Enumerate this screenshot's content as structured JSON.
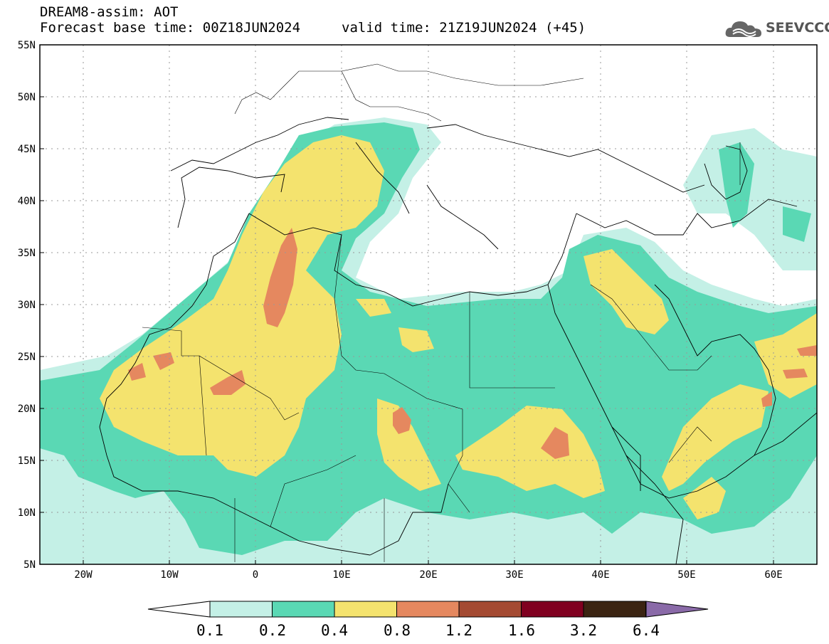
{
  "header": {
    "line1": "DREAM8-assim: AOT",
    "line2": "Forecast base time: 00Z18JUN2024",
    "valid": "valid time: 21Z19JUN2024 (+45)"
  },
  "logo": {
    "text": "SEEVCCC"
  },
  "axes": {
    "lat_labels": [
      "55N",
      "50N",
      "45N",
      "40N",
      "35N",
      "30N",
      "25N",
      "20N",
      "15N",
      "10N",
      "5N"
    ],
    "lon_labels": [
      "20W",
      "10W",
      "0",
      "10E",
      "20E",
      "30E",
      "40E",
      "50E",
      "60E"
    ],
    "lon_range": [
      -25,
      65
    ],
    "lat_range": [
      5,
      55
    ]
  },
  "colorbar": {
    "labels": [
      "0.1",
      "0.2",
      "0.4",
      "0.8",
      "1.2",
      "1.6",
      "3.2",
      "6.4"
    ],
    "colors": [
      "#c4f0e6",
      "#5ad8b4",
      "#f4e36e",
      "#e5885f",
      "#a44a32",
      "#800020",
      "#3b2412",
      "#8a6aa8"
    ]
  },
  "chart_data": {
    "type": "heatmap",
    "title": "DREAM8-assim: AOT",
    "variable": "AOT",
    "levels": [
      0.1,
      0.2,
      0.4,
      0.8,
      1.2,
      1.6,
      3.2,
      6.4
    ],
    "xlim": [
      -25,
      65
    ],
    "ylim": [
      5,
      55
    ],
    "grid": true
  }
}
